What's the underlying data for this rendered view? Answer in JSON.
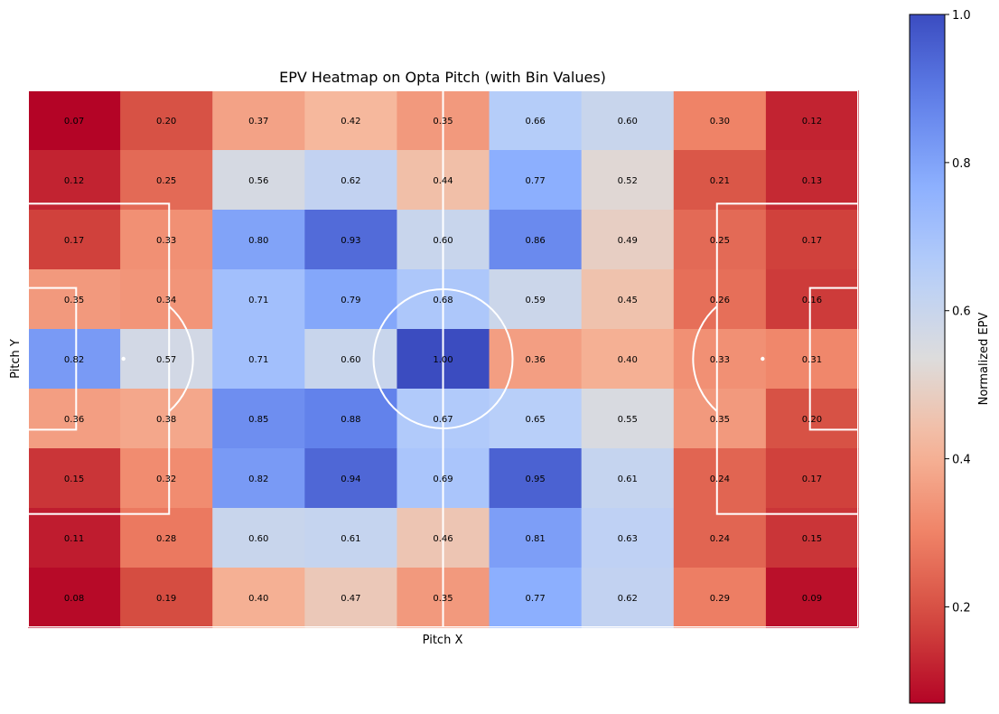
{
  "chart_data": {
    "type": "heatmap",
    "title": "EPV Heatmap on Opta Pitch (with Bin Values)",
    "xlabel": "Pitch X",
    "ylabel": "Pitch Y",
    "colormap": "coolwarm_r",
    "value_range": [
      0.07,
      1.0
    ],
    "values": [
      [
        0.07,
        0.2,
        0.37,
        0.42,
        0.35,
        0.66,
        0.6,
        0.3,
        0.12
      ],
      [
        0.12,
        0.25,
        0.56,
        0.62,
        0.44,
        0.77,
        0.52,
        0.21,
        0.13
      ],
      [
        0.17,
        0.33,
        0.8,
        0.93,
        0.6,
        0.86,
        0.49,
        0.25,
        0.17
      ],
      [
        0.35,
        0.34,
        0.71,
        0.79,
        0.68,
        0.59,
        0.45,
        0.26,
        0.16
      ],
      [
        0.82,
        0.57,
        0.71,
        0.6,
        1.0,
        0.36,
        0.4,
        0.33,
        0.31
      ],
      [
        0.36,
        0.38,
        0.85,
        0.88,
        0.67,
        0.65,
        0.55,
        0.35,
        0.2
      ],
      [
        0.15,
        0.32,
        0.82,
        0.94,
        0.69,
        0.95,
        0.61,
        0.24,
        0.17
      ],
      [
        0.11,
        0.28,
        0.6,
        0.61,
        0.46,
        0.81,
        0.63,
        0.24,
        0.15
      ],
      [
        0.08,
        0.19,
        0.4,
        0.47,
        0.35,
        0.77,
        0.62,
        0.29,
        0.09
      ]
    ],
    "colorbar": {
      "label": "Normalized EPV",
      "ticks": [
        "0.2",
        "0.4",
        "0.6",
        "0.8",
        "1.0"
      ],
      "tick_values": [
        0.2,
        0.4,
        0.6,
        0.8,
        1.0
      ]
    },
    "pitch_line_color": "#ffffff"
  }
}
